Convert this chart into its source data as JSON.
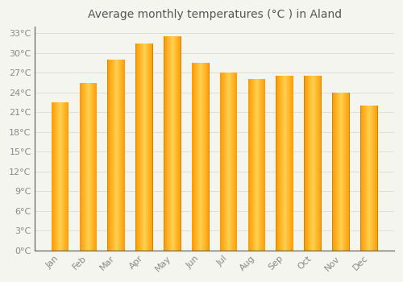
{
  "title": "Average monthly temperatures (°C ) in Aland",
  "months": [
    "Jan",
    "Feb",
    "Mar",
    "Apr",
    "May",
    "Jun",
    "Jul",
    "Aug",
    "Sep",
    "Oct",
    "Nov",
    "Dec"
  ],
  "temperatures": [
    22.5,
    25.5,
    29.0,
    31.5,
    32.5,
    28.5,
    27.0,
    26.0,
    26.5,
    26.5,
    24.0,
    22.0
  ],
  "bar_color_main": "#FFA500",
  "bar_color_center": "#FFD050",
  "background_color": "#F5F5F0",
  "grid_color": "#DDDDDD",
  "ytick_step": 3,
  "ymax": 34,
  "title_fontsize": 10,
  "tick_fontsize": 8,
  "tick_color": "#888888",
  "title_color": "#555555",
  "spine_color": "#555555"
}
